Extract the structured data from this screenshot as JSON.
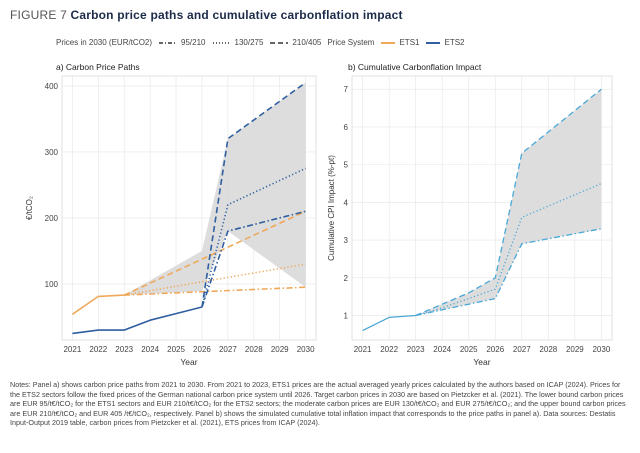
{
  "figure": {
    "number": "FIGURE 7",
    "title": "Carbon price paths and cumulative carbonflation impact"
  },
  "legend": {
    "prices_title": "Prices in 2030 (EUR/tCO2)",
    "prices_items": [
      {
        "label": "95/210",
        "dash": "low"
      },
      {
        "label": "130/275",
        "dash": "moderate"
      },
      {
        "label": "210/405",
        "dash": "upper"
      }
    ],
    "system_title": "Price System",
    "system_items": [
      {
        "label": "ETS1",
        "color": "#f0a85a"
      },
      {
        "label": "ETS2",
        "color": "#2f5fa0"
      }
    ]
  },
  "colors": {
    "ets1": "#f0a85a",
    "ets2": "#2f5fa0",
    "cpi": "#4aa8d8",
    "band": "#d9d9d9",
    "panel_bg": "#ffffff",
    "grid": "#e6e6e6"
  },
  "chart_data": [
    {
      "type": "line",
      "panel_label": "a) Carbon Price Paths",
      "xlabel": "Year",
      "ylabel": "€/tCO₂",
      "x": [
        2021,
        2022,
        2023,
        2024,
        2025,
        2026,
        2027,
        2028,
        2029,
        2030
      ],
      "xticks": [
        "2021",
        "2022",
        "2023",
        "2024",
        "2025",
        "2026",
        "2027",
        "2028",
        "2029",
        "2030"
      ],
      "yticks": [
        "100",
        "200",
        "300",
        "400"
      ],
      "xlim": [
        2020.6,
        2030.4
      ],
      "ylim": [
        15,
        415
      ],
      "series": [
        {
          "name": "ETS1",
          "scenario": "95/210",
          "style": "solid",
          "points": [
            [
              2021,
              54
            ],
            [
              2022,
              81
            ],
            [
              2023,
              83
            ]
          ]
        },
        {
          "name": "ETS1",
          "scenario": "95/210",
          "style": "low",
          "points": [
            [
              2023,
              83
            ],
            [
              2030,
              95
            ]
          ]
        },
        {
          "name": "ETS1",
          "scenario": "130/275",
          "style": "moderate",
          "points": [
            [
              2023,
              83
            ],
            [
              2030,
              130
            ]
          ]
        },
        {
          "name": "ETS1",
          "scenario": "210/405",
          "style": "upper",
          "points": [
            [
              2023,
              83
            ],
            [
              2030,
              210
            ]
          ]
        },
        {
          "name": "ETS2",
          "scenario": "95/210",
          "style": "solid",
          "points": [
            [
              2021,
              25
            ],
            [
              2022,
              30
            ],
            [
              2023,
              30
            ],
            [
              2024,
              45
            ],
            [
              2025,
              55
            ],
            [
              2026,
              65
            ]
          ]
        },
        {
          "name": "ETS2",
          "scenario": "95/210",
          "style": "low",
          "points": [
            [
              2026,
              65
            ],
            [
              2027,
              180
            ],
            [
              2030,
              210
            ]
          ]
        },
        {
          "name": "ETS2",
          "scenario": "130/275",
          "style": "moderate",
          "points": [
            [
              2026,
              65
            ],
            [
              2027,
              220
            ],
            [
              2030,
              275
            ]
          ]
        },
        {
          "name": "ETS2",
          "scenario": "210/405",
          "style": "upper",
          "points": [
            [
              2026,
              65
            ],
            [
              2027,
              320
            ],
            [
              2030,
              405
            ]
          ]
        }
      ],
      "band": {
        "upper": [
          [
            2023,
            83
          ],
          [
            2026,
            150
          ],
          [
            2027,
            320
          ],
          [
            2030,
            405
          ]
        ],
        "lower": [
          [
            2023,
            83
          ],
          [
            2026,
            89
          ],
          [
            2027,
            180
          ],
          [
            2030,
            95
          ]
        ]
      }
    },
    {
      "type": "line",
      "panel_label": "b) Cumulative Carbonflation Impact",
      "xlabel": "Year",
      "ylabel": "Cumulative CPI Impact (%-pt)",
      "x": [
        2021,
        2022,
        2023,
        2024,
        2025,
        2026,
        2027,
        2028,
        2029,
        2030
      ],
      "xticks": [
        "2021",
        "2022",
        "2023",
        "2024",
        "2025",
        "2026",
        "2027",
        "2028",
        "2029",
        "2030"
      ],
      "yticks": [
        "1",
        "2",
        "3",
        "4",
        "5",
        "6",
        "7"
      ],
      "xlim": [
        2020.6,
        2030.4
      ],
      "ylim": [
        0.35,
        7.35
      ],
      "series": [
        {
          "scenario": "95/210",
          "style": "solid",
          "points": [
            [
              2021,
              0.6
            ],
            [
              2022,
              0.95
            ],
            [
              2023,
              1.0
            ]
          ]
        },
        {
          "scenario": "95/210",
          "style": "low",
          "points": [
            [
              2023,
              1.0
            ],
            [
              2024,
              1.15
            ],
            [
              2025,
              1.3
            ],
            [
              2026,
              1.45
            ],
            [
              2027,
              2.9
            ],
            [
              2030,
              3.3
            ]
          ]
        },
        {
          "scenario": "130/275",
          "style": "moderate",
          "points": [
            [
              2023,
              1.0
            ],
            [
              2024,
              1.2
            ],
            [
              2025,
              1.45
            ],
            [
              2026,
              1.7
            ],
            [
              2027,
              3.6
            ],
            [
              2030,
              4.5
            ]
          ]
        },
        {
          "scenario": "210/405",
          "style": "upper",
          "points": [
            [
              2023,
              1.0
            ],
            [
              2024,
              1.3
            ],
            [
              2025,
              1.6
            ],
            [
              2026,
              2.0
            ],
            [
              2027,
              5.3
            ],
            [
              2030,
              7.0
            ]
          ]
        }
      ],
      "band": {
        "upper": [
          [
            2023,
            1.0
          ],
          [
            2024,
            1.3
          ],
          [
            2025,
            1.6
          ],
          [
            2026,
            2.0
          ],
          [
            2027,
            5.3
          ],
          [
            2030,
            7.0
          ]
        ],
        "lower": [
          [
            2023,
            1.0
          ],
          [
            2024,
            1.15
          ],
          [
            2025,
            1.3
          ],
          [
            2026,
            1.45
          ],
          [
            2027,
            2.9
          ],
          [
            2030,
            3.3
          ]
        ]
      }
    }
  ],
  "notes": "Notes: Panel a) shows carbon price paths from 2021 to 2030. From 2021 to 2023, ETS1 prices are the actual averaged yearly prices calculated by the authors based on ICAP (2024). Prices for the ETS2 sectors follow the fixed prices of the German national carbon price system until 2026. Target carbon prices in 2030 are based on Pietzcker et al. (2021). The lower bound carbon prices are EUR 95/t€/tCO₂ for the ETS1 sectors and EUR 210/t€/tCO₂ for the ETS2 sectors; the moderate carbon prices are EUR 130/t€/tCO₂ and EUR 275/t€/tCO₂; and the upper bound carbon prices are EUR 210/t€/tCO₂ and EUR 405 /t€/tCO₂, respectively. Panel b) shows the simulated cumulative total inflation impact that corresponds to the price paths in panel a). Data sources: Destatis Input-Output 2019 table, carbon prices from Pietzcker et al. (2021), ETS prices from ICAP (2024)."
}
